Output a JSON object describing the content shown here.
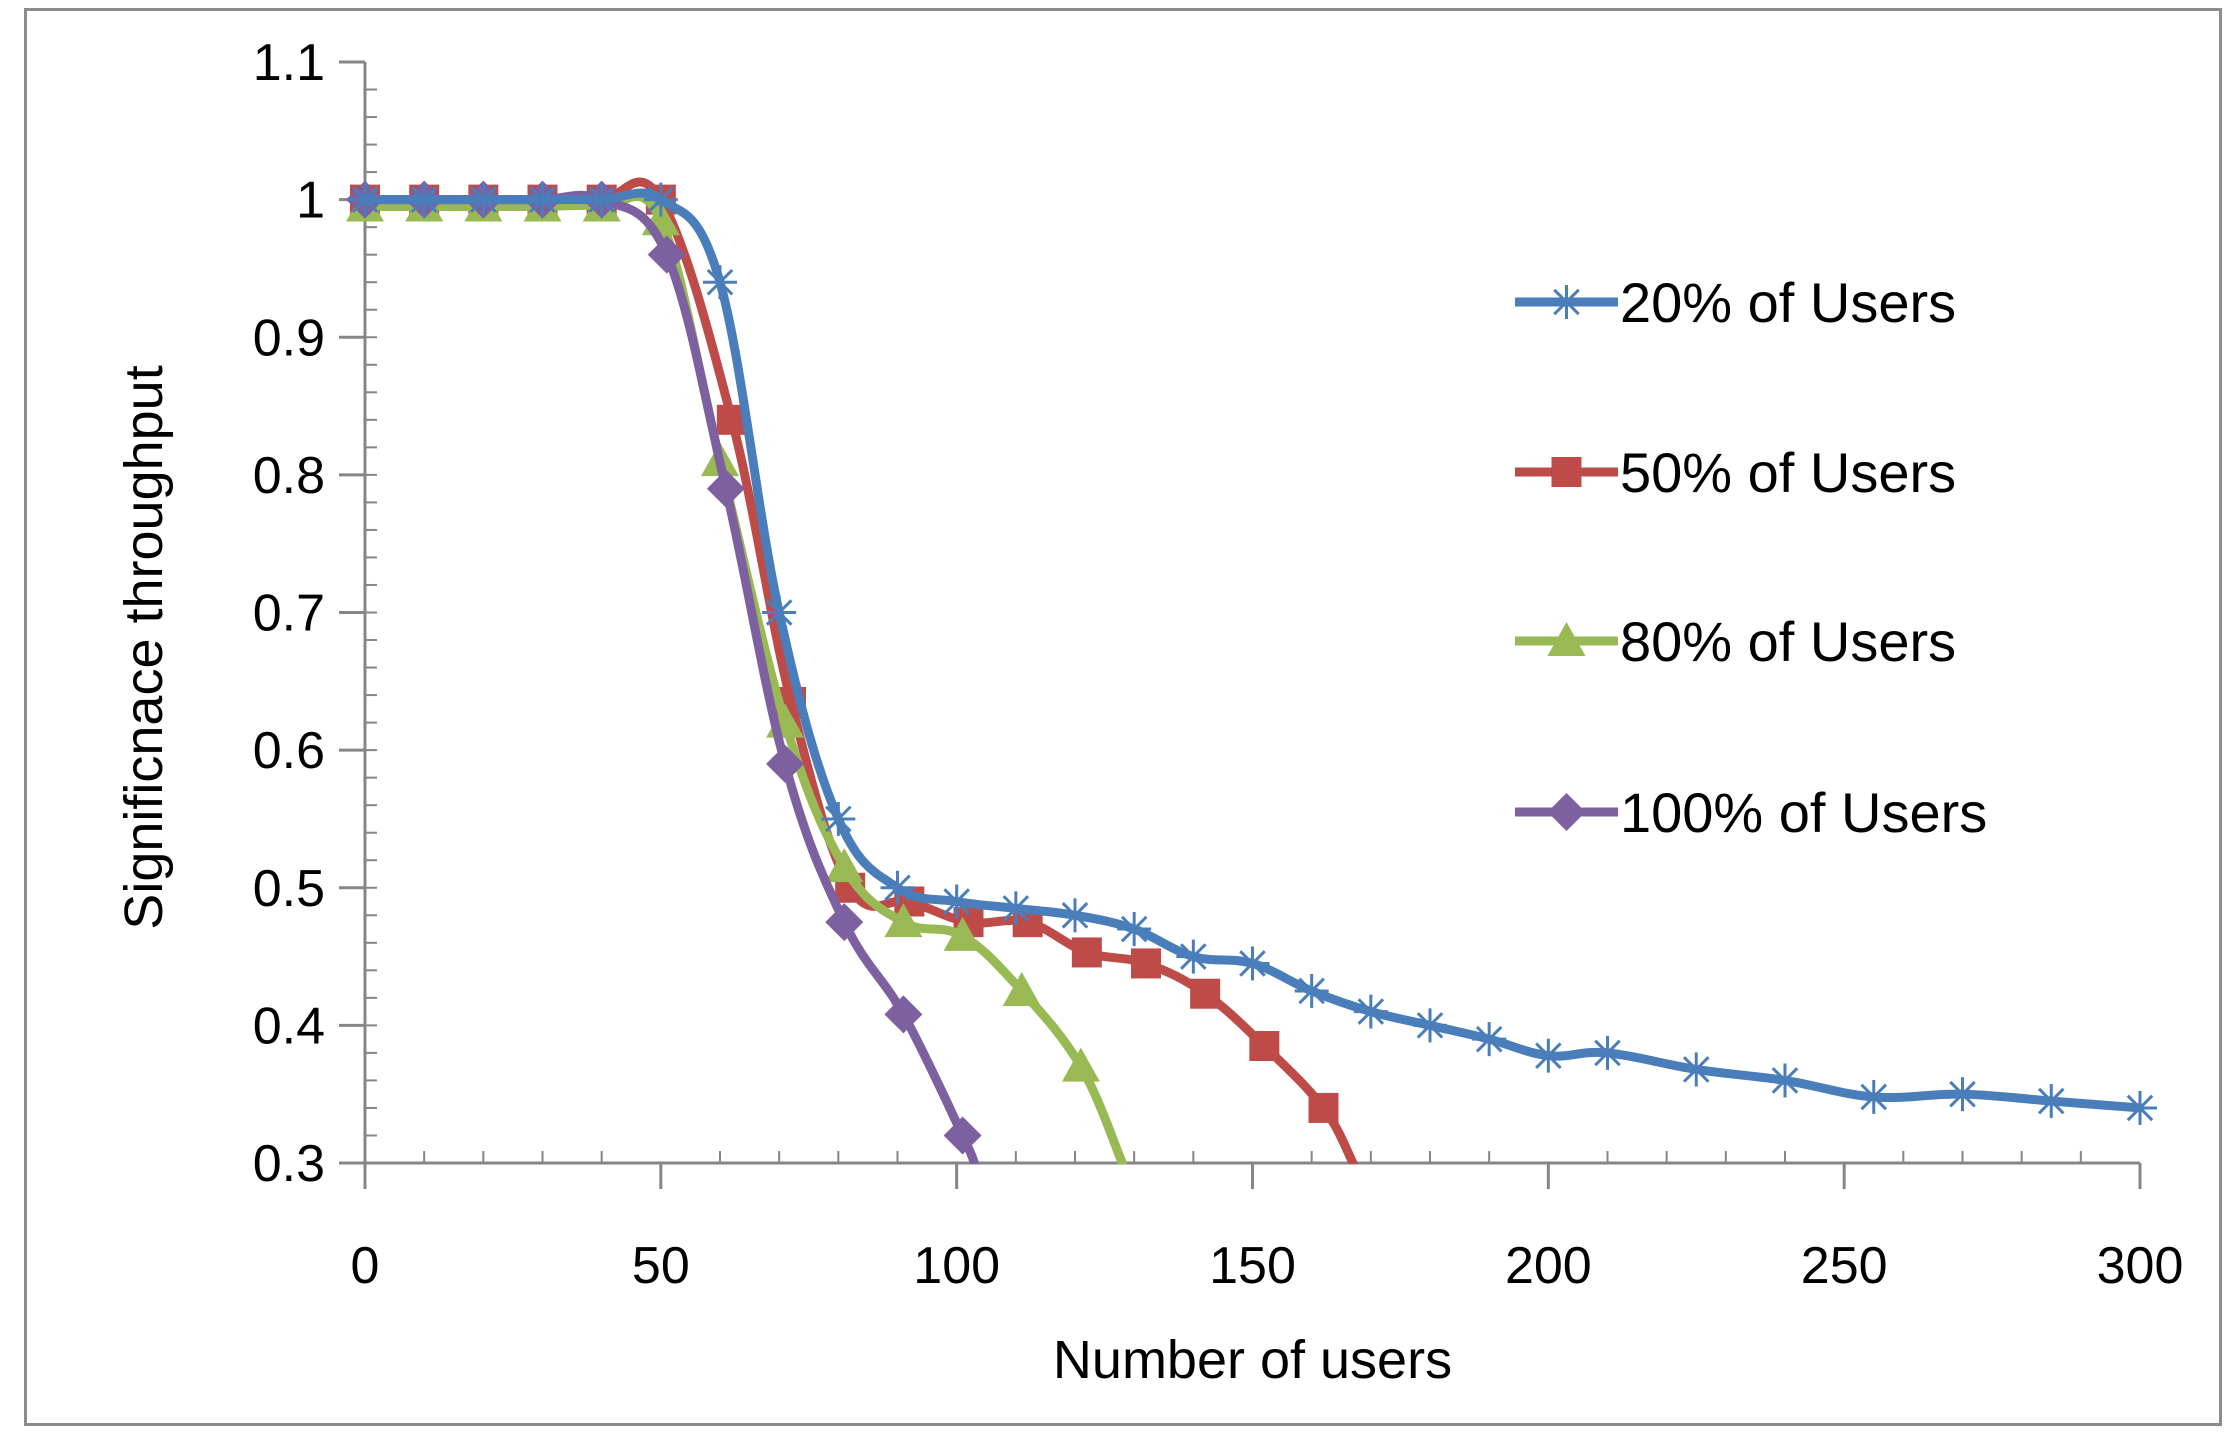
{
  "chart_data": {
    "type": "line",
    "title": "",
    "xlabel": "Number of users",
    "ylabel": "Significnace throughput",
    "xlim": [
      0,
      300
    ],
    "ylim": [
      0.3,
      1.1
    ],
    "x_ticks": [
      "0",
      "50",
      "100",
      "150",
      "200",
      "250",
      "300"
    ],
    "x_tick_values": [
      0,
      50,
      100,
      150,
      200,
      250,
      300
    ],
    "y_ticks": [
      "0.3",
      "0.4",
      "0.5",
      "0.6",
      "0.7",
      "0.8",
      "0.9",
      "1",
      "1.1"
    ],
    "y_tick_values": [
      0.3,
      0.4,
      0.5,
      0.6,
      0.7,
      0.8,
      0.9,
      1.0,
      1.1
    ],
    "legend_position": "right",
    "series": [
      {
        "name": "20% of Users",
        "color": "#4a7ebb",
        "marker": "asterisk",
        "x": [
          0,
          10,
          20,
          30,
          40,
          50,
          60,
          70,
          80,
          90,
          100,
          110,
          120,
          130,
          140,
          150,
          160,
          170,
          180,
          190,
          200,
          210,
          225,
          240,
          255,
          270,
          285,
          300
        ],
        "y": [
          1.0,
          1.0,
          1.0,
          1.0,
          1.0,
          1.0,
          0.94,
          0.7,
          0.55,
          0.5,
          0.49,
          0.485,
          0.48,
          0.47,
          0.45,
          0.445,
          0.425,
          0.41,
          0.4,
          0.39,
          0.378,
          0.38,
          0.368,
          0.36,
          0.348,
          0.35,
          0.345,
          0.34
        ]
      },
      {
        "name": "50% of Users",
        "color": "#be4b48",
        "marker": "square",
        "x": [
          0,
          10,
          20,
          30,
          40,
          50,
          62,
          72,
          82,
          92,
          102,
          112,
          122,
          132,
          142,
          152,
          162,
          167
        ],
        "y": [
          1.0,
          1.0,
          1.0,
          1.0,
          1.0,
          1.0,
          0.84,
          0.635,
          0.5,
          0.49,
          0.475,
          0.475,
          0.453,
          0.445,
          0.423,
          0.385,
          0.34,
          0.3
        ]
      },
      {
        "name": "80% of Users",
        "color": "#98b954",
        "marker": "triangle",
        "x": [
          0,
          10,
          20,
          30,
          40,
          50,
          60,
          71,
          81,
          91,
          101,
          111,
          121,
          128
        ],
        "y": [
          0.995,
          0.995,
          0.995,
          0.995,
          0.995,
          0.985,
          0.81,
          0.62,
          0.515,
          0.475,
          0.465,
          0.425,
          0.37,
          0.3
        ]
      },
      {
        "name": "100% of Users",
        "color": "#7d60a0",
        "marker": "diamond",
        "x": [
          0,
          10,
          20,
          30,
          40,
          51,
          61,
          71,
          81,
          91,
          101,
          103
        ],
        "y": [
          1.0,
          1.0,
          1.0,
          1.0,
          1.0,
          0.96,
          0.79,
          0.59,
          0.475,
          0.408,
          0.32,
          0.3
        ]
      }
    ]
  }
}
